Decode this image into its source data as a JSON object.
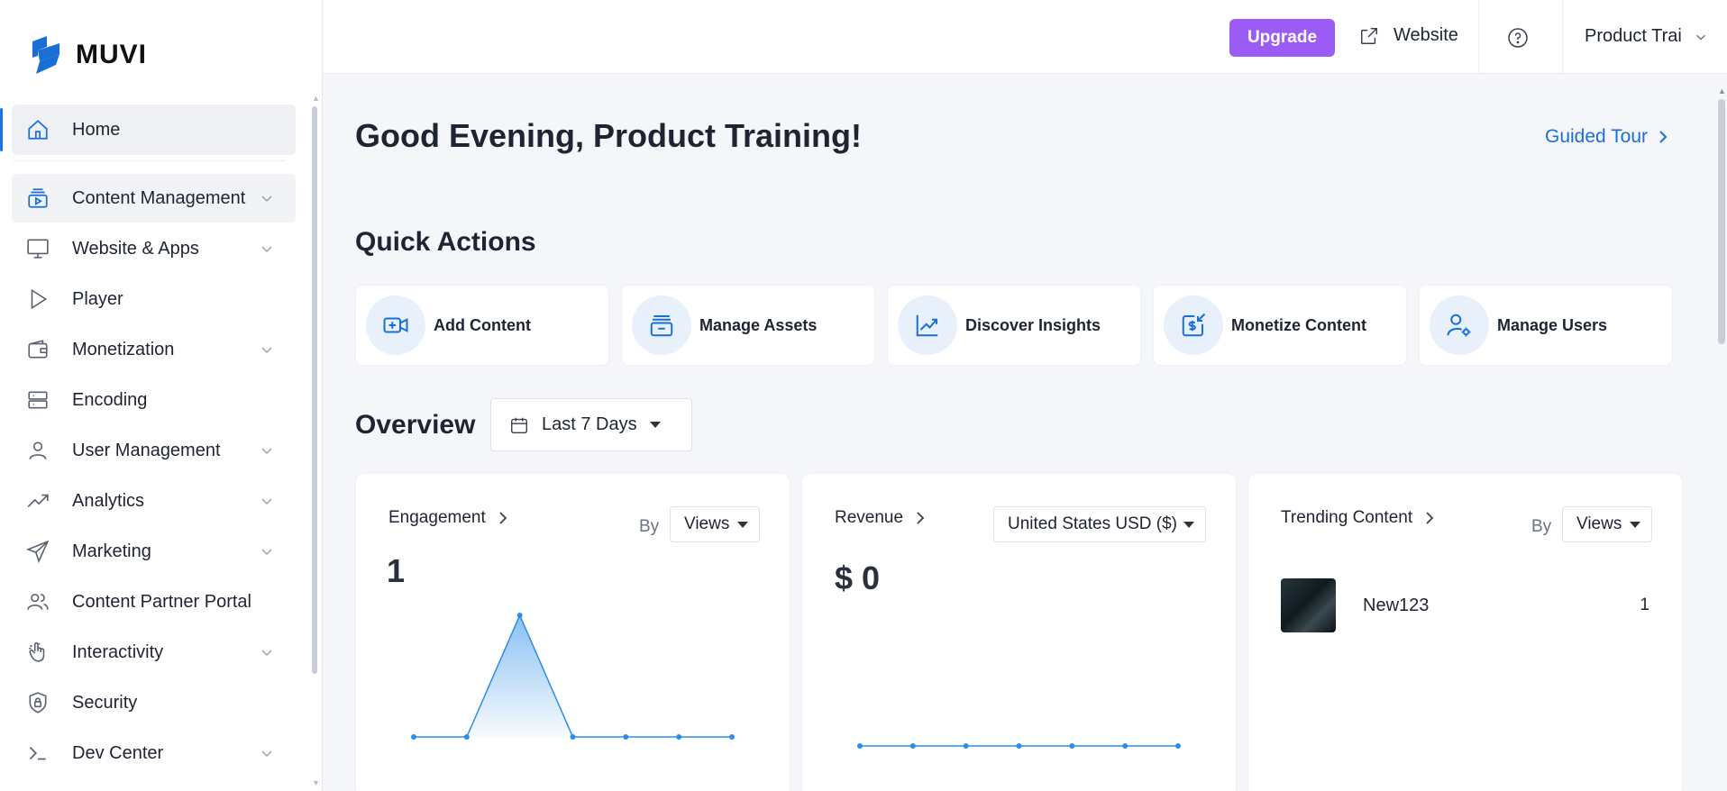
{
  "brand": {
    "name": "MUVI",
    "color": "#1a6fd6"
  },
  "sidebar": {
    "items": [
      {
        "label": "Home",
        "icon": "home-icon",
        "expandable": false,
        "active": true
      },
      {
        "label": "Content Management",
        "icon": "content-management-icon",
        "expandable": true
      },
      {
        "label": "Website & Apps",
        "icon": "monitor-icon",
        "expandable": true
      },
      {
        "label": "Player",
        "icon": "play-icon",
        "expandable": false
      },
      {
        "label": "Monetization",
        "icon": "wallet-icon",
        "expandable": true
      },
      {
        "label": "Encoding",
        "icon": "server-icon",
        "expandable": false
      },
      {
        "label": "User Management",
        "icon": "user-icon",
        "expandable": true
      },
      {
        "label": "Analytics",
        "icon": "trend-icon",
        "expandable": true
      },
      {
        "label": "Marketing",
        "icon": "send-icon",
        "expandable": true
      },
      {
        "label": "Content Partner Portal",
        "icon": "users-icon",
        "expandable": false
      },
      {
        "label": "Interactivity",
        "icon": "touch-icon",
        "expandable": true
      },
      {
        "label": "Security",
        "icon": "shield-icon",
        "expandable": false
      },
      {
        "label": "Dev Center",
        "icon": "terminal-icon",
        "expandable": true
      }
    ]
  },
  "topbar": {
    "upgrade_label": "Upgrade",
    "website_label": "Website",
    "account_label": "Product Trai"
  },
  "main": {
    "greeting": "Good Evening, Product Training!",
    "guided_tour": "Guided Tour",
    "quick_actions_title": "Quick Actions",
    "quick_actions": [
      {
        "label": "Add Content",
        "icon": "add-video-icon"
      },
      {
        "label": "Manage Assets",
        "icon": "assets-icon"
      },
      {
        "label": "Discover Insights",
        "icon": "insights-chart-icon"
      },
      {
        "label": "Monetize Content",
        "icon": "monetize-icon"
      },
      {
        "label": "Manage Users",
        "icon": "user-settings-icon"
      }
    ],
    "overview_title": "Overview",
    "period": "Last 7 Days",
    "cards": {
      "engagement": {
        "title": "Engagement",
        "by": "By",
        "metric": "Views",
        "value": "1"
      },
      "revenue": {
        "title": "Revenue",
        "currency": "United States USD ($)",
        "value": "$ 0"
      },
      "trending": {
        "title": "Trending Content",
        "by": "By",
        "metric": "Views",
        "items": [
          {
            "name": "New123",
            "count": "1"
          }
        ]
      }
    }
  },
  "chart_data": [
    {
      "type": "area",
      "series": [
        {
          "values": [
            0,
            0,
            1,
            0,
            0,
            0,
            0
          ]
        }
      ],
      "ylim": [
        0,
        1
      ],
      "accent": "#2b8de8"
    },
    {
      "type": "line",
      "series": [
        {
          "values": [
            0,
            0,
            0,
            0,
            0,
            0,
            0
          ]
        }
      ],
      "ylim": [
        0,
        1
      ],
      "accent": "#2b8de8"
    }
  ]
}
